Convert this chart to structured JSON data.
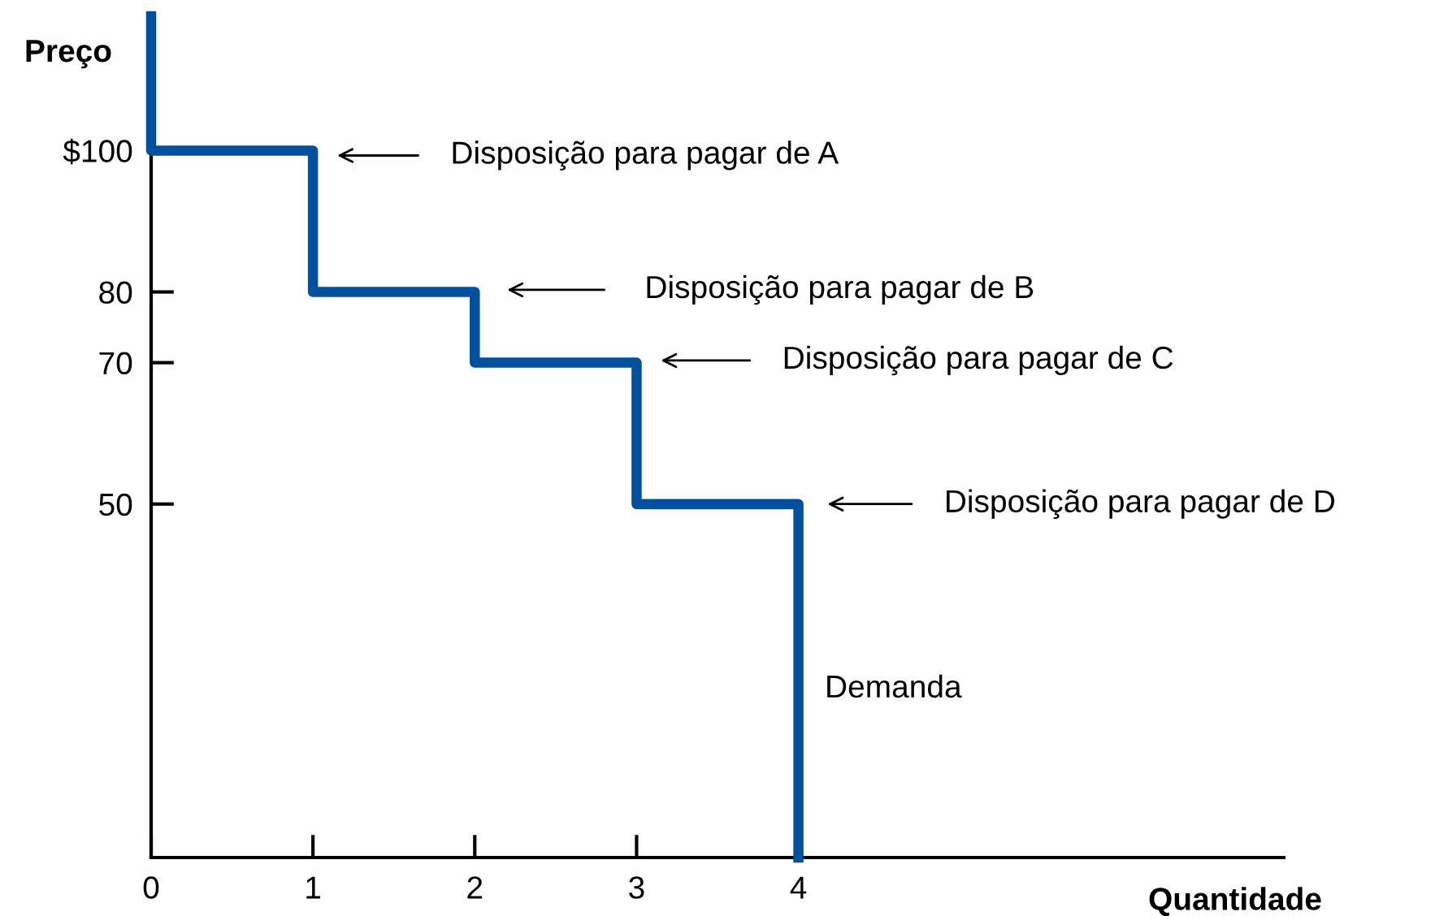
{
  "chart_data": {
    "type": "line",
    "xlabel": "Quantidade",
    "ylabel": "Preço",
    "series": [
      {
        "name": "Demanda",
        "color": "#0050a0",
        "x": [
          0,
          0,
          1,
          1,
          2,
          2,
          3,
          3,
          4,
          4
        ],
        "values": [
          119,
          100,
          100,
          80,
          80,
          70,
          70,
          50,
          50,
          0
        ]
      }
    ],
    "xlim": [
      0,
      7
    ],
    "ylim": [
      0,
      119
    ],
    "xticks": [
      0,
      1,
      2,
      3,
      4
    ],
    "yticks": [
      {
        "value": 100,
        "label": "$100"
      },
      80,
      70,
      50
    ],
    "annotations": [
      "Disposição para pagar de A",
      "Disposição para pagar de B",
      "Disposição para pagar de C",
      "Disposição para pagar de D"
    ],
    "grid": false,
    "legend": false,
    "marker": "none",
    "line_style": "solid"
  }
}
